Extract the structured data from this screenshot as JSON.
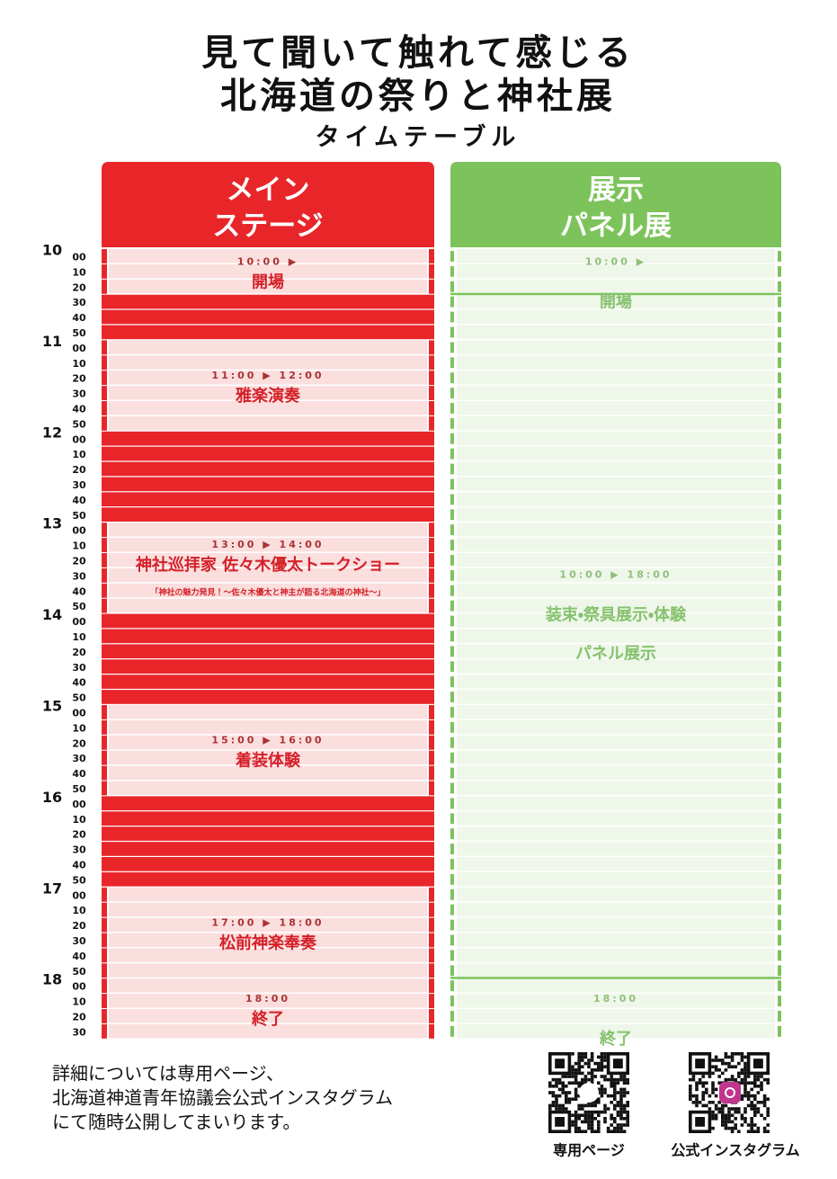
{
  "title": {
    "line1": "見て聞いて触れて感じる",
    "line2": "北海道の祭りと神社展",
    "subtitle": "タイムテーブル"
  },
  "hours": [
    {
      "label": "10",
      "minutes": [
        "00",
        "10",
        "20",
        "30",
        "40",
        "50"
      ]
    },
    {
      "label": "11",
      "minutes": [
        "00",
        "10",
        "20",
        "30",
        "40",
        "50"
      ]
    },
    {
      "label": "12",
      "minutes": [
        "00",
        "10",
        "20",
        "30",
        "40",
        "50"
      ]
    },
    {
      "label": "13",
      "minutes": [
        "00",
        "10",
        "20",
        "30",
        "40",
        "50"
      ]
    },
    {
      "label": "14",
      "minutes": [
        "00",
        "10",
        "20",
        "30",
        "40",
        "50"
      ]
    },
    {
      "label": "15",
      "minutes": [
        "00",
        "10",
        "20",
        "30",
        "40",
        "50"
      ]
    },
    {
      "label": "16",
      "minutes": [
        "00",
        "10",
        "20",
        "30",
        "40",
        "50"
      ]
    },
    {
      "label": "17",
      "minutes": [
        "00",
        "10",
        "20",
        "30",
        "40",
        "50"
      ]
    },
    {
      "label": "18",
      "minutes": [
        "00",
        "10",
        "20",
        "30"
      ]
    }
  ],
  "columns": [
    {
      "header": [
        "メイン",
        "ステージ"
      ],
      "events": [
        {
          "time": "10:00 ▶",
          "lines": [
            "開場"
          ]
        },
        {
          "time": "11:00 ▶ 12:00",
          "lines": [
            "雅楽演奏"
          ]
        },
        {
          "time": "13:00 ▶ 14:00",
          "lines": [
            "神社巡拝家 佐々木優太トークショー",
            "「神社の魅力発見！～佐々木優太と神主が語る北海道の神社～」"
          ]
        },
        {
          "time": "15:00 ▶ 16:00",
          "lines": [
            "着装体験"
          ]
        },
        {
          "time": "17:00 ▶ 18:00",
          "lines": [
            "松前神楽奉奏"
          ]
        },
        {
          "time": "18:00",
          "lines": [
            "終了"
          ]
        }
      ]
    },
    {
      "header": [
        "展示",
        "パネル展"
      ],
      "events": [
        {
          "time": "10:00 ▶",
          "lines": [
            "開場"
          ]
        },
        {
          "time": "10:00 ▶ 18:00",
          "lines": [
            "装束・祭具展示・体験",
            "パネル展示"
          ]
        },
        {
          "time": "18:00",
          "lines": [
            "終了"
          ]
        }
      ]
    }
  ],
  "footer": {
    "lines": [
      "詳細については専用ページ、",
      "北海道神道青年協議会公式インスタグラム",
      "にて随時公開してまいります。"
    ],
    "qr_labels": [
      "専用ページ",
      "公式インスタグラム"
    ]
  }
}
